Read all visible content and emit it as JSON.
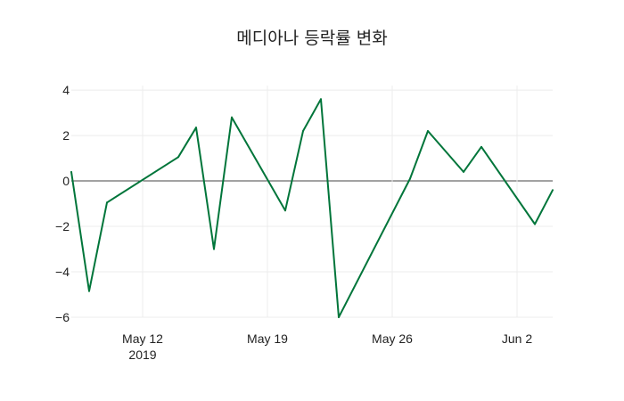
{
  "chart_data": {
    "type": "line",
    "title": "메디아나 등락률 변화",
    "xlabel": "",
    "ylabel": "",
    "xlim": [
      "2019-05-08",
      "2019-06-04"
    ],
    "ylim": [
      -6,
      4.2
    ],
    "y_ticks": [
      4,
      2,
      0,
      -2,
      -4,
      -6
    ],
    "y_tick_labels": [
      "4",
      "2",
      "0",
      "−2",
      "−4",
      "−6"
    ],
    "x_ticks": [
      {
        "date": "2019-05-12",
        "label": "May 12",
        "sublabel": "2019"
      },
      {
        "date": "2019-05-19",
        "label": "May 19",
        "sublabel": ""
      },
      {
        "date": "2019-05-26",
        "label": "May 26",
        "sublabel": ""
      },
      {
        "date": "2019-06-02",
        "label": "Jun 2",
        "sublabel": ""
      }
    ],
    "grid": true,
    "series": [
      {
        "color": "#00753a",
        "points": [
          {
            "x": "2019-05-08",
            "y": 0.4
          },
          {
            "x": "2019-05-09",
            "y": -4.85
          },
          {
            "x": "2019-05-10",
            "y": -0.95
          },
          {
            "x": "2019-05-14",
            "y": 1.05
          },
          {
            "x": "2019-05-15",
            "y": 2.35
          },
          {
            "x": "2019-05-16",
            "y": -3.0
          },
          {
            "x": "2019-05-17",
            "y": 2.8
          },
          {
            "x": "2019-05-20",
            "y": -1.3
          },
          {
            "x": "2019-05-21",
            "y": 2.2
          },
          {
            "x": "2019-05-22",
            "y": 3.6
          },
          {
            "x": "2019-05-23",
            "y": -6.0
          },
          {
            "x": "2019-05-27",
            "y": 0.1
          },
          {
            "x": "2019-05-28",
            "y": 2.2
          },
          {
            "x": "2019-05-30",
            "y": 0.4
          },
          {
            "x": "2019-05-31",
            "y": 1.5
          },
          {
            "x": "2019-06-03",
            "y": -1.9
          },
          {
            "x": "2019-06-04",
            "y": -0.4
          }
        ]
      }
    ]
  }
}
